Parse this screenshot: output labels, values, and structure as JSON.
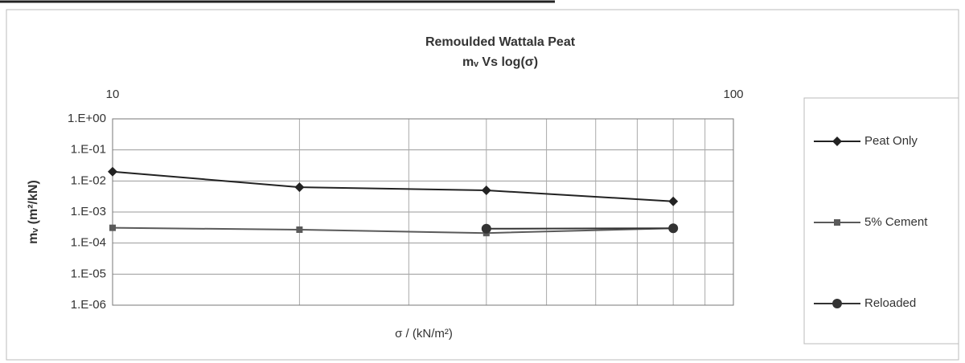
{
  "chart_data": {
    "type": "line",
    "title": "Remoulded Wattala Peat",
    "subtitle": "mᵥ Vs log(σ)",
    "x_label": "σ / (kN/m²)",
    "y_label": "mᵥ (m²/kN)",
    "x_log": true,
    "y_log": true,
    "xlim": [
      10,
      100
    ],
    "xticks": [
      10,
      100
    ],
    "xminor": [
      20,
      30,
      40,
      50,
      60,
      70,
      80,
      90
    ],
    "ylim": [
      1e-06,
      1
    ],
    "yticks": [
      {
        "value": 1,
        "label": "1.E+00"
      },
      {
        "value": 0.1,
        "label": "1.E-01"
      },
      {
        "value": 0.01,
        "label": "1.E-02"
      },
      {
        "value": 0.001,
        "label": "1.E-03"
      },
      {
        "value": 0.0001,
        "label": "1.E-04"
      },
      {
        "value": 1e-05,
        "label": "1.E-05"
      },
      {
        "value": 1e-06,
        "label": "1.E-06"
      }
    ],
    "grid": true,
    "legend": "right",
    "series": [
      {
        "name": "Peat Only",
        "color": "#222222",
        "marker": "diamond",
        "x": [
          10,
          20,
          40,
          80
        ],
        "values": [
          0.02,
          0.0063,
          0.005,
          0.0022
        ]
      },
      {
        "name": "5% Cement",
        "color": "#5a5a5a",
        "marker": "square",
        "x": [
          10,
          20,
          40,
          80
        ],
        "values": [
          0.00031,
          0.00027,
          0.00021,
          0.0003
        ]
      },
      {
        "name": "Reloaded",
        "color": "#333333",
        "marker": "circle",
        "x": [
          40,
          80
        ],
        "values": [
          0.00029,
          0.0003
        ]
      }
    ]
  }
}
